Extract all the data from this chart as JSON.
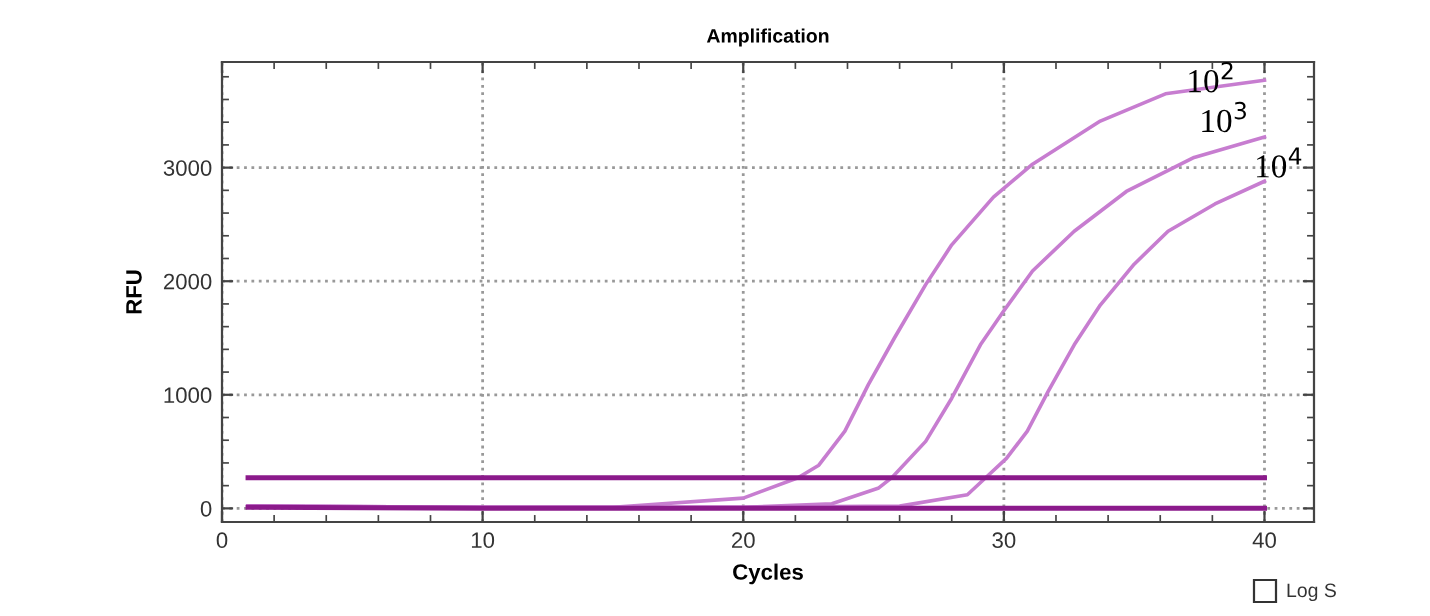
{
  "chart_data": {
    "type": "line",
    "title": "Amplification",
    "xlabel": "Cycles",
    "ylabel": "RFU",
    "xlim": [
      0,
      41.9
    ],
    "ylim": [
      -120,
      3930
    ],
    "xticks": [
      0,
      10,
      20,
      30,
      40
    ],
    "yticks": [
      0,
      1000,
      2000,
      3000
    ],
    "grid": true,
    "line_style": "solid",
    "marker": "none",
    "annotations": [
      "Log S"
    ],
    "series": [
      {
        "name": "10$^{2}$",
        "color": "#c77dd0",
        "x": [
          1,
          10,
          15,
          20,
          22.1,
          22.9,
          23.9,
          24.8,
          25.8,
          27,
          28,
          29.6,
          31.1,
          33.7,
          36.2,
          40
        ],
        "values": [
          20,
          10,
          10,
          90,
          270,
          380,
          680,
          1090,
          1500,
          1970,
          2320,
          2740,
          3030,
          3410,
          3650,
          3770
        ]
      },
      {
        "name": "10$^{3}$",
        "color": "#c77dd0",
        "x": [
          1,
          10,
          15,
          20,
          23.4,
          25.2,
          25.7,
          27,
          28,
          29.1,
          30,
          31.1,
          32.7,
          34.7,
          37.3,
          40
        ],
        "values": [
          20,
          10,
          10,
          10,
          40,
          180,
          270,
          590,
          970,
          1440,
          1740,
          2090,
          2440,
          2790,
          3090,
          3270
        ]
      },
      {
        "name": "10$^{4}$",
        "color": "#c77dd0",
        "x": [
          1,
          10,
          15,
          20,
          26,
          28.6,
          29.3,
          30.1,
          30.9,
          31.7,
          32.7,
          33.7,
          35,
          36.3,
          38.1,
          40
        ],
        "values": [
          20,
          10,
          10,
          10,
          20,
          120,
          270,
          440,
          680,
          1030,
          1440,
          1790,
          2150,
          2440,
          2680,
          2880
        ]
      },
      {
        "color": "#8b1a8b",
        "x": [
          1,
          10,
          20,
          30,
          40
        ],
        "values": [
          10,
          0,
          0,
          0,
          0
        ]
      },
      {
        "color": "#8b1a8b",
        "x": [
          1,
          40
        ],
        "values": [
          270,
          270
        ]
      }
    ]
  }
}
